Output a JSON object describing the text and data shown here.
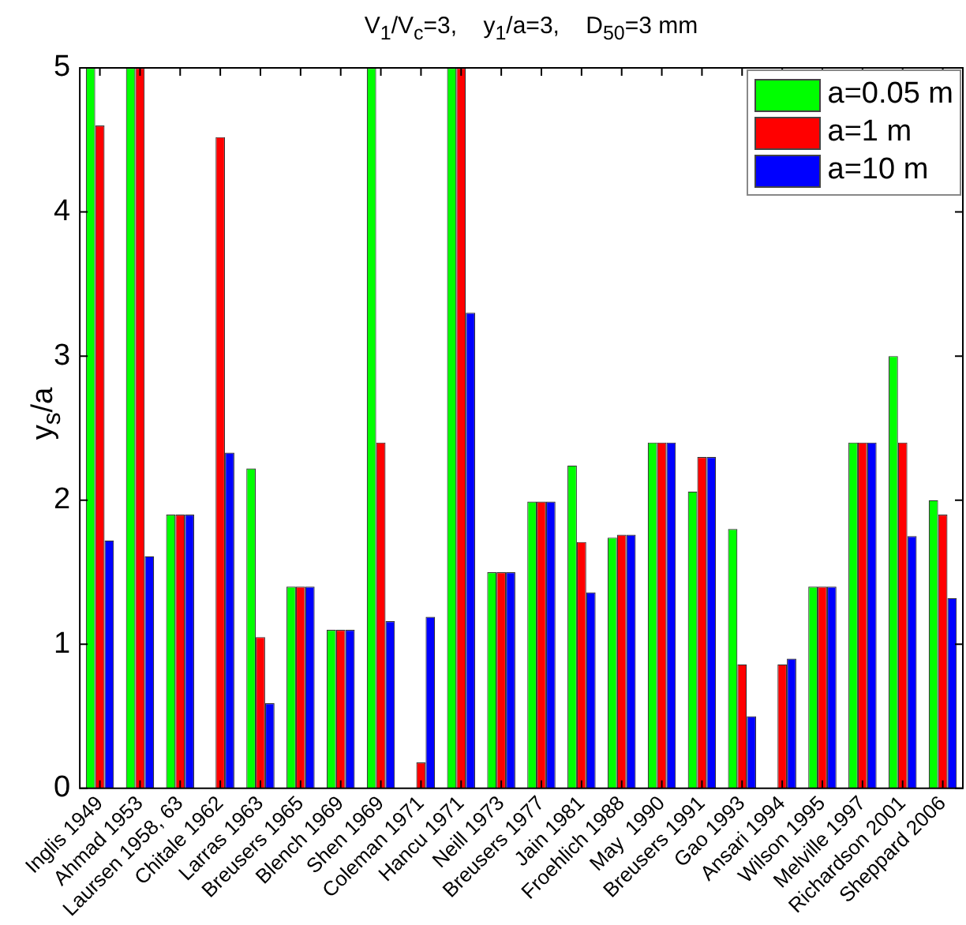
{
  "chart_data": {
    "type": "bar",
    "title": "V$_{1}$/V$_{c}$=3,    y$_{1}$/a=3,    D$_{50}$=3 mm",
    "ylabel": "y$_{s}$/a",
    "categories": [
      "Inglis 1949",
      "Ahmad 1953",
      "Laursen 1958, 63",
      "Chitale 1962",
      "Larras 1963",
      "Breusers 1965",
      "Blench 1969",
      "Shen 1969",
      "Coleman 1971",
      "Hancu 1971",
      "Neill 1973",
      "Breusers 1977",
      "Jain 1981",
      "Froehlich 1988",
      "May  1990",
      "Breusers 1991",
      "Gao 1993",
      "Ansari 1994",
      "Wilson 1995",
      "Melville 1997",
      "Richardson 2001",
      "Sheppard 2006"
    ],
    "series": [
      {
        "name": "a=0.05 m",
        "color": "#00ff00",
        "values": [
          5,
          5,
          1.9,
          null,
          2.22,
          1.4,
          1.1,
          5,
          null,
          5,
          1.5,
          1.99,
          2.24,
          1.74,
          2.4,
          2.06,
          1.8,
          null,
          1.4,
          2.4,
          3.0,
          2.0
        ]
      },
      {
        "name": "a=1 m",
        "color": "#ff0000",
        "values": [
          4.6,
          5,
          1.9,
          4.52,
          1.05,
          1.4,
          1.1,
          2.4,
          0.18,
          5,
          1.5,
          1.99,
          1.71,
          1.76,
          2.4,
          2.3,
          0.86,
          0.86,
          1.4,
          2.4,
          2.4,
          1.9
        ]
      },
      {
        "name": "a=10 m",
        "color": "#0000ff",
        "values": [
          1.72,
          1.61,
          1.9,
          2.33,
          0.59,
          1.4,
          1.1,
          1.16,
          1.19,
          3.3,
          1.5,
          1.99,
          1.36,
          1.76,
          2.4,
          2.3,
          0.5,
          0.9,
          1.4,
          2.4,
          1.75,
          1.32
        ]
      }
    ],
    "ylim": [
      0,
      5
    ],
    "yticks": [
      0,
      1,
      2,
      3,
      4,
      5
    ],
    "grid": false,
    "legend": "top right"
  }
}
